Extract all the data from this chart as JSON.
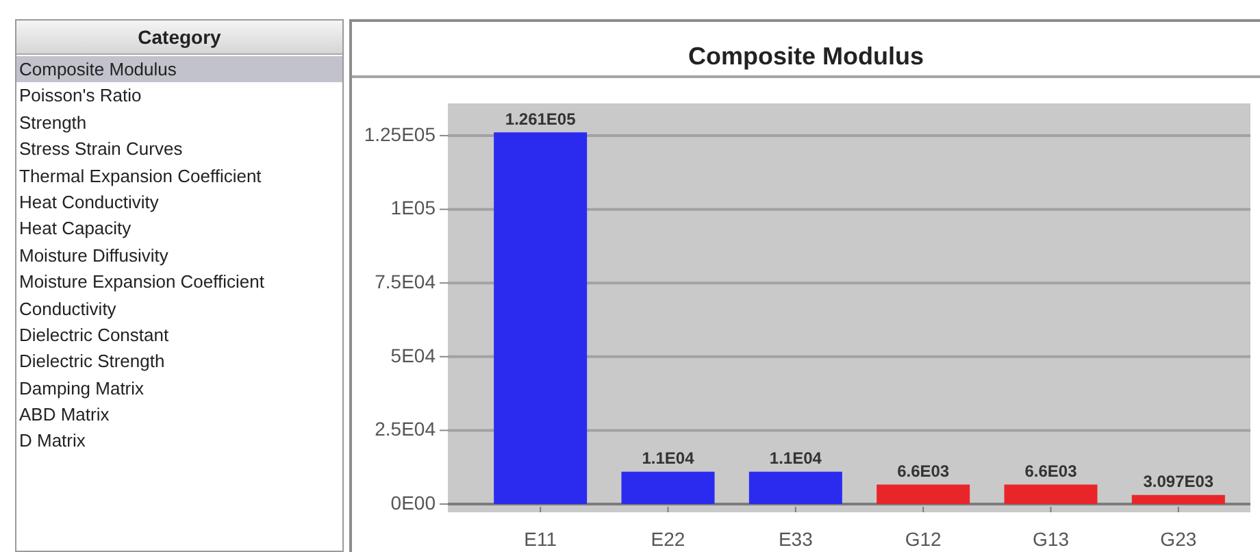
{
  "chart_data": [
    {
      "type": "other",
      "title": "Category",
      "annotations": [
        "Composite Modulus",
        "Poisson's Ratio",
        "Strength",
        "Stress Strain Curves",
        "Thermal Expansion Coefficient",
        "Heat Conductivity",
        "Heat Capacity",
        "Moisture Diffusivity",
        "Moisture Expansion Coefficient",
        "Conductivity",
        "Dielectric Constant",
        "Dielectric Strength",
        "Damping Matrix",
        "ABD Matrix",
        "D Matrix"
      ]
    },
    {
      "type": "bar",
      "title": "Composite Modulus",
      "categories": [
        "E11",
        "E22",
        "E33",
        "G12",
        "G13",
        "G23"
      ],
      "values": [
        126100,
        11000,
        11000,
        6600,
        6600,
        3097
      ],
      "colors": [
        "#2b2bf0",
        "#2b2bf0",
        "#2b2bf0",
        "#e8262a",
        "#e8262a",
        "#e8262a"
      ],
      "value_labels": [
        "1.261E05",
        "1.1E04",
        "1.1E04",
        "6.6E03",
        "6.6E03",
        "3.097E03"
      ],
      "ylim": [
        0,
        135000
      ],
      "yticks": [
        {
          "value": 0,
          "label": "0E00"
        },
        {
          "value": 25000,
          "label": "2.5E04"
        },
        {
          "value": 50000,
          "label": "5E04"
        },
        {
          "value": 75000,
          "label": "7.5E04"
        },
        {
          "value": 100000,
          "label": "1E05"
        },
        {
          "value": 125000,
          "label": "1.25E05"
        }
      ],
      "grid": "y"
    }
  ]
}
